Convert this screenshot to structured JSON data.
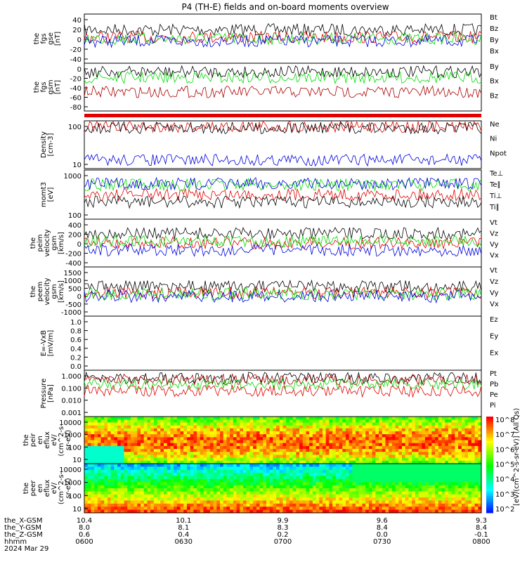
{
  "title": "P4 (TH-E) fields and on-board moments overview",
  "colors": {
    "black": "#000000",
    "red": "#e00000",
    "green": "#00dd00",
    "blue": "#0000dd",
    "darkred": "#aa0000"
  },
  "chart_data": [
    {
      "type": "line",
      "ylabel_lines": [
        "the",
        "fgs",
        "gse",
        "[nT]"
      ],
      "yticks": [
        "40",
        "20",
        "0",
        "-20",
        "-40"
      ],
      "series": [
        {
          "name": "Bt",
          "color": "black",
          "level": 0.32
        },
        {
          "name": "Bz",
          "color": "red",
          "level": 0.47
        },
        {
          "name": "By",
          "color": "green",
          "level": 0.5
        },
        {
          "name": "Bx",
          "color": "blue",
          "level": 0.55
        }
      ]
    },
    {
      "type": "line",
      "ylabel_lines": [
        "the",
        "fgs",
        "gsm",
        "[nT]"
      ],
      "yticks": [
        "0",
        "-20",
        "-40",
        "-60",
        "-80"
      ],
      "series": [
        {
          "name": "By",
          "color": "green",
          "level": 0.3
        },
        {
          "name": "Bx",
          "color": "black",
          "level": 0.18
        },
        {
          "name": "Bz",
          "color": "darkred",
          "level": 0.6
        }
      ]
    },
    {
      "type": "line",
      "ylabel_lines": [
        "Density",
        "[cm-3]"
      ],
      "yticks": [
        "100",
        "10"
      ],
      "series": [
        {
          "name": "Ne",
          "color": "red",
          "level": 0.12
        },
        {
          "name": "Ni",
          "color": "black",
          "level": 0.15
        },
        {
          "name": "Npot",
          "color": "blue",
          "level": 0.82
        }
      ]
    },
    {
      "type": "line",
      "ylabel_lines": [
        "momt3",
        "[eV]"
      ],
      "yticks": [
        "1000",
        "100"
      ],
      "series": [
        {
          "name": "Te⊥",
          "color": "red",
          "level": 0.5
        },
        {
          "name": "Te∥",
          "color": "black",
          "level": 0.65
        },
        {
          "name": "Ti⊥",
          "color": "green",
          "level": 0.3
        },
        {
          "name": "Ti∥",
          "color": "blue",
          "level": 0.28
        }
      ]
    },
    {
      "type": "line",
      "ylabel_lines": [
        "the",
        "peim",
        "velocity",
        "gsm",
        "[km/s]"
      ],
      "yticks": [
        "400",
        "200",
        "0",
        "-200",
        "-400"
      ],
      "series": [
        {
          "name": "Vt",
          "color": "black",
          "level": 0.3
        },
        {
          "name": "Vz",
          "color": "red",
          "level": 0.5
        },
        {
          "name": "Vy",
          "color": "green",
          "level": 0.46
        },
        {
          "name": "Vx",
          "color": "blue",
          "level": 0.65
        }
      ]
    },
    {
      "type": "line",
      "ylabel_lines": [
        "the",
        "peem",
        "velocity",
        "gsm",
        "[km/s]"
      ],
      "yticks": [
        "1500",
        "1000",
        "500",
        "0",
        "-500",
        "-1000"
      ],
      "series": [
        {
          "name": "Vt",
          "color": "black",
          "level": 0.4
        },
        {
          "name": "Vz",
          "color": "red",
          "level": 0.52
        },
        {
          "name": "Vy",
          "color": "green",
          "level": 0.55
        },
        {
          "name": "Vx",
          "color": "blue",
          "level": 0.6
        }
      ]
    },
    {
      "type": "line",
      "ylabel_lines": [
        "E=-VxB",
        "[mV/m]"
      ],
      "yticks": [
        "1.0",
        "0.8",
        "0.6",
        "0.4",
        "0.2",
        "0.0"
      ],
      "series": [
        {
          "name": "Ez",
          "color": "red",
          "level": null
        },
        {
          "name": "Ey",
          "color": "green",
          "level": null
        },
        {
          "name": "Ex",
          "color": "blue",
          "level": null
        }
      ]
    },
    {
      "type": "line",
      "ylabel_lines": [
        "Pressure",
        "[nPa]"
      ],
      "yticks": [
        "1.000",
        "0.100",
        "0.010",
        "0.001"
      ],
      "series": [
        {
          "name": "Pt",
          "color": "black",
          "level": 0.17
        },
        {
          "name": "Pb",
          "color": "darkred",
          "level": 0.2
        },
        {
          "name": "Pe",
          "color": "green",
          "level": 0.3
        },
        {
          "name": "Pi",
          "color": "red",
          "level": 0.45
        }
      ]
    },
    {
      "type": "heatmap",
      "ylabel_lines": [
        "the",
        "peir",
        "en",
        "eflux",
        "eV/",
        "(cm^2-s-",
        "sr-eV)"
      ],
      "yticks": [
        "10000",
        "1000",
        "100",
        "10"
      ]
    },
    {
      "type": "heatmap",
      "ylabel_lines": [
        "the",
        "peer",
        "en",
        "eflux",
        "eV/",
        "(cm^2-s-",
        "sr-eV)"
      ],
      "yticks": [
        "10000",
        "1000",
        "100",
        "10"
      ]
    }
  ],
  "colorbar": {
    "label": "[eV/(cm^2-s-sr-eV)] (All Qs)",
    "ticks": [
      "10^8",
      "10^7",
      "10^6",
      "10^5",
      "10^4",
      "10^3",
      "10^2"
    ]
  },
  "xaxis": {
    "rows": [
      {
        "label": "the_X-GSM",
        "values": [
          "10.4",
          "10.1",
          "9.9",
          "9.6",
          "9.3"
        ]
      },
      {
        "label": "the_Y-GSM",
        "values": [
          "8.0",
          "8.1",
          "8.3",
          "8.4",
          "8.4"
        ]
      },
      {
        "label": "the_Z-GSM",
        "values": [
          "0.6",
          "0.4",
          "0.2",
          "0.0",
          "-0.1"
        ]
      },
      {
        "label": "hhmm",
        "values": [
          "0600",
          "0630",
          "0700",
          "0730",
          "0800"
        ]
      }
    ],
    "date": "2024 Mar 29"
  }
}
